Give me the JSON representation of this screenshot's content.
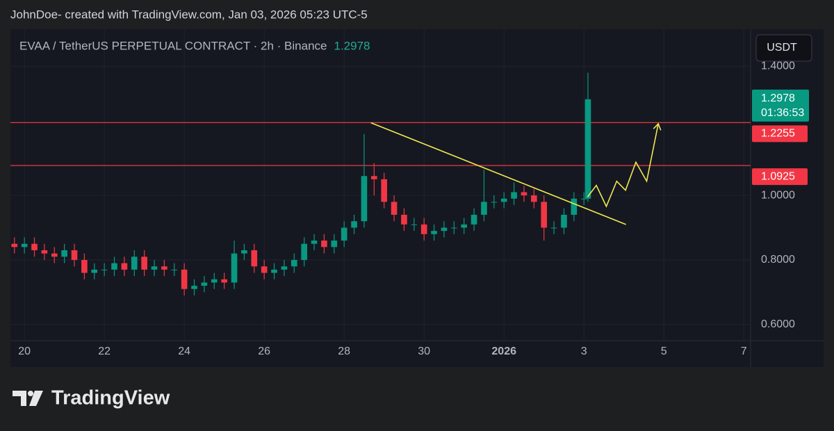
{
  "chart_data": {
    "type": "candlestick",
    "attribution": "JohnDoe- created with TradingView.com, Jan 03, 2026 05:23 UTC-5",
    "symbol": "EVAA / TetherUS PERPETUAL CONTRACT · 2h · Binance",
    "last_price": 1.2978,
    "countdown": "01:36:53",
    "currency": "USDT",
    "logo": "TradingView",
    "up_color": "#089981",
    "down_color": "#f23645",
    "grid": true,
    "xlim": [
      -0.35,
      18.17
    ],
    "ylim": [
      0.55,
      1.515
    ],
    "xticks": [
      {
        "value": 0,
        "label": "20"
      },
      {
        "value": 2,
        "label": "22"
      },
      {
        "value": 4,
        "label": "24"
      },
      {
        "value": 6,
        "label": "26"
      },
      {
        "value": 8,
        "label": "28"
      },
      {
        "value": 10,
        "label": "30"
      },
      {
        "value": 12,
        "label": "2026"
      },
      {
        "value": 14,
        "label": "3"
      },
      {
        "value": 16,
        "label": "5"
      },
      {
        "value": 18,
        "label": "7"
      }
    ],
    "yticks": [
      {
        "value": 0.6,
        "label": "0.6000"
      },
      {
        "value": 0.8,
        "label": "0.8000"
      },
      {
        "value": 1.0,
        "label": "1.0000"
      },
      {
        "value": 1.4,
        "label": "1.4000"
      }
    ],
    "x": [
      -0.25,
      0,
      0.25,
      0.5,
      0.75,
      1,
      1.25,
      1.5,
      1.75,
      2,
      2.25,
      2.5,
      2.75,
      3,
      3.25,
      3.5,
      3.75,
      4,
      4.25,
      4.5,
      4.75,
      5,
      5.25,
      5.5,
      5.75,
      6,
      6.25,
      6.5,
      6.75,
      7,
      7.25,
      7.5,
      7.75,
      8,
      8.25,
      8.5,
      8.75,
      9,
      9.25,
      9.5,
      9.75,
      10,
      10.25,
      10.5,
      10.75,
      11,
      11.25,
      11.5,
      11.75,
      12,
      12.25,
      12.5,
      12.75,
      13,
      13.25,
      13.5,
      13.75,
      14,
      14.1
    ],
    "open": [
      0.85,
      0.84,
      0.85,
      0.83,
      0.82,
      0.81,
      0.83,
      0.8,
      0.76,
      0.77,
      0.77,
      0.79,
      0.77,
      0.81,
      0.77,
      0.78,
      0.77,
      0.77,
      0.71,
      0.72,
      0.73,
      0.74,
      0.73,
      0.82,
      0.83,
      0.78,
      0.76,
      0.77,
      0.78,
      0.8,
      0.85,
      0.86,
      0.84,
      0.86,
      0.9,
      0.92,
      1.06,
      1.05,
      0.98,
      0.94,
      0.91,
      0.91,
      0.88,
      0.89,
      0.9,
      0.9,
      0.91,
      0.94,
      0.98,
      0.98,
      0.99,
      1.01,
      1.0,
      0.98,
      0.9,
      0.9,
      0.94,
      0.99,
      0.99
    ],
    "high": [
      0.87,
      0.87,
      0.87,
      0.85,
      0.84,
      0.85,
      0.85,
      0.82,
      0.79,
      0.79,
      0.81,
      0.81,
      0.83,
      0.83,
      0.8,
      0.8,
      0.79,
      0.79,
      0.74,
      0.75,
      0.76,
      0.76,
      0.86,
      0.85,
      0.85,
      0.8,
      0.79,
      0.8,
      0.82,
      0.87,
      0.88,
      0.88,
      0.88,
      0.92,
      0.94,
      1.19,
      1.1,
      1.07,
      1.0,
      0.96,
      0.93,
      0.93,
      0.91,
      0.92,
      0.92,
      0.93,
      0.96,
      1.08,
      1.0,
      1.01,
      1.04,
      1.03,
      1.02,
      1.0,
      0.92,
      0.96,
      1.01,
      1.01,
      1.38
    ],
    "low": [
      0.82,
      0.82,
      0.81,
      0.8,
      0.79,
      0.79,
      0.78,
      0.74,
      0.74,
      0.75,
      0.75,
      0.75,
      0.75,
      0.75,
      0.75,
      0.75,
      0.75,
      0.69,
      0.69,
      0.7,
      0.71,
      0.71,
      0.71,
      0.8,
      0.76,
      0.74,
      0.74,
      0.75,
      0.76,
      0.78,
      0.83,
      0.82,
      0.82,
      0.84,
      0.88,
      0.9,
      1.0,
      0.96,
      0.92,
      0.89,
      0.89,
      0.86,
      0.86,
      0.87,
      0.88,
      0.88,
      0.89,
      0.92,
      0.96,
      0.96,
      0.97,
      0.98,
      0.96,
      0.86,
      0.88,
      0.88,
      0.92,
      0.97,
      0.98
    ],
    "close": [
      0.84,
      0.85,
      0.83,
      0.82,
      0.81,
      0.83,
      0.8,
      0.76,
      0.77,
      0.77,
      0.79,
      0.77,
      0.81,
      0.77,
      0.78,
      0.77,
      0.77,
      0.71,
      0.72,
      0.73,
      0.74,
      0.73,
      0.82,
      0.83,
      0.78,
      0.76,
      0.77,
      0.78,
      0.8,
      0.85,
      0.86,
      0.84,
      0.86,
      0.9,
      0.92,
      1.06,
      1.05,
      0.98,
      0.94,
      0.91,
      0.91,
      0.88,
      0.89,
      0.9,
      0.9,
      0.91,
      0.94,
      0.98,
      0.98,
      0.99,
      1.01,
      1.0,
      0.98,
      0.9,
      0.9,
      0.94,
      0.99,
      0.99,
      1.2978
    ],
    "levels": [
      1.2255,
      1.0925
    ],
    "level_color": "#f23645",
    "drawing_color": "#f2e94e",
    "trendline": {
      "x": [
        8.67,
        15.05
      ],
      "y": [
        1.225,
        0.91
      ]
    },
    "projection": {
      "x": [
        14.09,
        14.31,
        14.56,
        14.82,
        15.04,
        15.3,
        15.57,
        15.86
      ],
      "y": [
        0.995,
        1.031,
        0.966,
        1.044,
        1.016,
        1.103,
        1.044,
        1.222
      ]
    }
  }
}
